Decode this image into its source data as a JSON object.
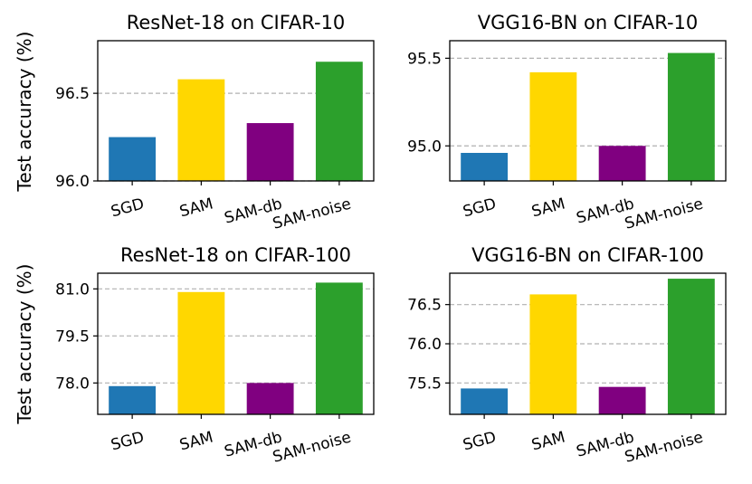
{
  "figure": {
    "ylabel": "Test accuracy (%)"
  },
  "colors": {
    "SGD": "#1f77b4",
    "SAM": "#ffd700",
    "SAM-db": "#800080",
    "SAM-noise": "#2ca02c",
    "grid": "#b0b0b0"
  },
  "chart_data": [
    {
      "type": "bar",
      "title": "ResNet-18 on CIFAR-10",
      "categories": [
        "SGD",
        "SAM",
        "SAM-db",
        "SAM-noise"
      ],
      "values": [
        96.25,
        96.58,
        96.33,
        96.68
      ],
      "ylim": [
        96.0,
        96.8
      ],
      "yticks": [
        96.0,
        96.5
      ],
      "ytick_labels": [
        "96.0",
        "96.5"
      ],
      "ylabel": "Test accuracy (%)",
      "grid": "y, dashed"
    },
    {
      "type": "bar",
      "title": "VGG16-BN on CIFAR-10",
      "categories": [
        "SGD",
        "SAM",
        "SAM-db",
        "SAM-noise"
      ],
      "values": [
        94.96,
        95.42,
        95.0,
        95.53
      ],
      "ylim": [
        94.8,
        95.6
      ],
      "yticks": [
        95.0,
        95.5
      ],
      "ytick_labels": [
        "95.0",
        "95.5"
      ],
      "ylabel": "",
      "grid": "y, dashed"
    },
    {
      "type": "bar",
      "title": "ResNet-18 on CIFAR-100",
      "categories": [
        "SGD",
        "SAM",
        "SAM-db",
        "SAM-noise"
      ],
      "values": [
        77.9,
        80.9,
        78.0,
        81.2
      ],
      "ylim": [
        77.0,
        81.5
      ],
      "yticks": [
        78.0,
        79.5,
        81.0
      ],
      "ytick_labels": [
        "78.0",
        "79.5",
        "81.0"
      ],
      "ylabel": "Test accuracy (%)",
      "grid": "y, dashed"
    },
    {
      "type": "bar",
      "title": "VGG16-BN on CIFAR-100",
      "categories": [
        "SGD",
        "SAM",
        "SAM-db",
        "SAM-noise"
      ],
      "values": [
        75.43,
        76.63,
        75.45,
        76.83
      ],
      "ylim": [
        75.1,
        76.9
      ],
      "yticks": [
        75.5,
        76.0,
        76.5
      ],
      "ytick_labels": [
        "75.5",
        "76.0",
        "76.5"
      ],
      "ylabel": "",
      "grid": "y, dashed"
    }
  ]
}
